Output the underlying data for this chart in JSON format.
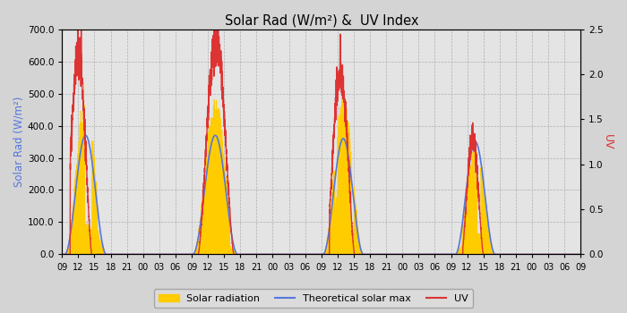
{
  "title": "Solar Rad (W/m²) &  UV Index",
  "ylabel_left": "Solar Rad (W/m²)",
  "ylabel_right": "UV",
  "ylim_left": [
    0,
    700
  ],
  "ylim_right": [
    0,
    2.5
  ],
  "yticks_left": [
    0,
    100,
    200,
    300,
    400,
    500,
    600,
    700
  ],
  "ytick_labels_left": [
    "0.0",
    "100.0",
    "200.0",
    "300.0",
    "400.0",
    "500.0",
    "600.0",
    "700.0"
  ],
  "yticks_right": [
    0.0,
    0.5,
    1.0,
    1.5,
    2.0,
    2.5
  ],
  "ytick_labels_right": [
    "0.0",
    "0.5",
    "1.0",
    "1.5",
    "2.0",
    "2.5"
  ],
  "xtick_labels": [
    "09",
    "12",
    "15",
    "18",
    "21",
    "00",
    "03",
    "06",
    "09",
    "12",
    "15",
    "18",
    "21",
    "00",
    "03",
    "06",
    "09",
    "12",
    "15",
    "18",
    "21",
    "00",
    "03",
    "06",
    "09",
    "12",
    "15",
    "18",
    "21",
    "00",
    "03",
    "06",
    "09"
  ],
  "background_color": "#d4d4d4",
  "plot_bg_color": "#e4e4e4",
  "grid_color": "#b0b0b0",
  "color_solar": "#ffcc00",
  "color_theoretical": "#5577dd",
  "color_uv": "#dd3333",
  "color_ylabel_left": "#5577dd",
  "color_ylabel_right": "#dd3333",
  "legend_labels": [
    "Solar radiation",
    "Theoretical solar max",
    "UV"
  ],
  "n_points": 1153,
  "total_hours": 96
}
